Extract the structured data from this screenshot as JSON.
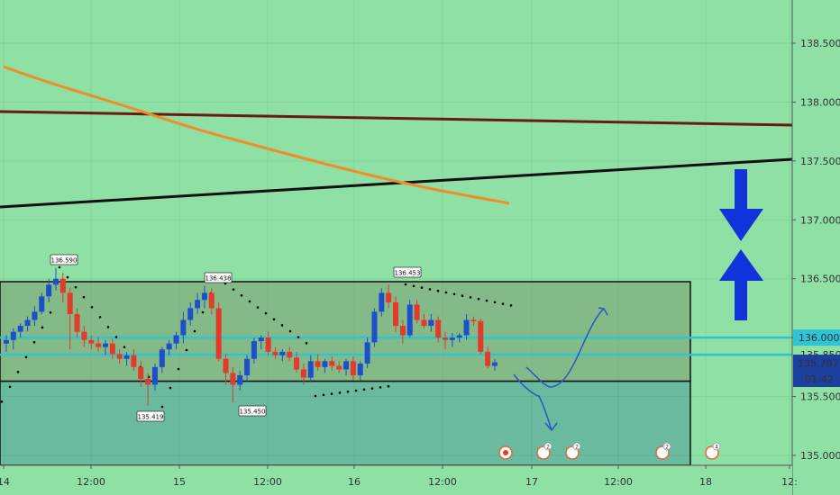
{
  "chart_data": {
    "type": "candlestick",
    "y_ticks": [
      138.5,
      138.0,
      137.5,
      137.0,
      136.5,
      136.0,
      135.5,
      135.0
    ],
    "y_tick_labels": [
      "138.500",
      "138.000",
      "137.500",
      "137.000",
      "136.500",
      "136.000",
      "135.500",
      "135.000"
    ],
    "x_tick_labels": [
      "14",
      "12:00",
      "15",
      "12:00",
      "16",
      "12:00",
      "17",
      "12:00",
      "18",
      "12:"
    ],
    "ylim": [
      134.96,
      138.84
    ],
    "price_tag": "135.787",
    "countdown_tag": "01:42",
    "price_label_136": "136.000",
    "hidden_label": "135.850",
    "annotations": [
      "136.590",
      "136.438",
      "135.419",
      "135.450",
      "136.453"
    ],
    "event_badges": [
      "2",
      "2",
      "2",
      "4"
    ],
    "colors": {
      "background": "#8fe0a4",
      "up": "#1e4fc8",
      "down": "#e23a2b",
      "box": "rgba(120,140,100,0.45)",
      "lower_box": "rgba(60,140,150,0.45)",
      "cyan": "#2ec4d6",
      "brown": "#6b1a12",
      "orange": "#f08c2a",
      "black": "#111111",
      "arrow": "#1034d9"
    },
    "candles": [
      [
        135.95,
        136.02,
        135.88,
        135.98
      ],
      [
        135.98,
        136.08,
        135.9,
        136.05
      ],
      [
        136.05,
        136.12,
        136.0,
        136.1
      ],
      [
        136.1,
        136.18,
        136.05,
        136.15
      ],
      [
        136.15,
        136.27,
        136.1,
        136.22
      ],
      [
        136.22,
        136.38,
        136.2,
        136.35
      ],
      [
        136.35,
        136.5,
        136.3,
        136.45
      ],
      [
        136.45,
        136.59,
        136.4,
        136.5
      ],
      [
        136.5,
        136.55,
        136.3,
        136.38
      ],
      [
        136.38,
        136.42,
        135.9,
        136.2
      ],
      [
        136.2,
        136.25,
        136.0,
        136.05
      ],
      [
        136.05,
        136.1,
        135.92,
        135.98
      ],
      [
        135.98,
        136.02,
        135.9,
        135.95
      ],
      [
        135.95,
        136.0,
        135.88,
        135.92
      ],
      [
        135.92,
        135.98,
        135.85,
        135.95
      ],
      [
        135.95,
        135.99,
        135.82,
        135.86
      ],
      [
        135.86,
        135.9,
        135.78,
        135.82
      ],
      [
        135.82,
        135.88,
        135.76,
        135.85
      ],
      [
        135.85,
        135.9,
        135.72,
        135.75
      ],
      [
        135.75,
        135.8,
        135.58,
        135.65
      ],
      [
        135.65,
        135.7,
        135.42,
        135.6
      ],
      [
        135.6,
        135.78,
        135.55,
        135.75
      ],
      [
        135.75,
        135.92,
        135.7,
        135.9
      ],
      [
        135.9,
        135.98,
        135.85,
        135.95
      ],
      [
        135.95,
        136.05,
        135.9,
        136.02
      ],
      [
        136.02,
        136.22,
        135.95,
        136.15
      ],
      [
        136.15,
        136.3,
        136.1,
        136.25
      ],
      [
        136.25,
        136.38,
        136.2,
        136.32
      ],
      [
        136.32,
        136.44,
        136.25,
        136.38
      ],
      [
        136.38,
        136.42,
        136.2,
        136.25
      ],
      [
        136.25,
        136.3,
        135.8,
        135.82
      ],
      [
        135.82,
        135.86,
        135.6,
        135.7
      ],
      [
        135.7,
        135.75,
        135.45,
        135.6
      ],
      [
        135.6,
        135.72,
        135.55,
        135.68
      ],
      [
        135.68,
        135.85,
        135.62,
        135.82
      ],
      [
        135.82,
        136.0,
        135.78,
        135.97
      ],
      [
        135.97,
        136.02,
        135.9,
        136.0
      ],
      [
        136.0,
        136.05,
        135.85,
        135.88
      ],
      [
        135.88,
        135.92,
        135.82,
        135.85
      ],
      [
        135.85,
        135.9,
        135.8,
        135.88
      ],
      [
        135.88,
        135.92,
        135.8,
        135.83
      ],
      [
        135.83,
        135.88,
        135.7,
        135.73
      ],
      [
        135.73,
        135.78,
        135.6,
        135.66
      ],
      [
        135.66,
        135.85,
        135.62,
        135.8
      ],
      [
        135.8,
        135.86,
        135.72,
        135.75
      ],
      [
        135.75,
        135.82,
        135.7,
        135.8
      ],
      [
        135.8,
        135.84,
        135.72,
        135.76
      ],
      [
        135.76,
        135.8,
        135.7,
        135.73
      ],
      [
        135.73,
        135.82,
        135.68,
        135.8
      ],
      [
        135.8,
        135.84,
        135.64,
        135.68
      ],
      [
        135.68,
        135.8,
        135.64,
        135.78
      ],
      [
        135.78,
        136.0,
        135.74,
        135.96
      ],
      [
        135.96,
        136.25,
        135.92,
        136.22
      ],
      [
        136.22,
        136.42,
        136.18,
        136.38
      ],
      [
        136.38,
        136.45,
        136.25,
        136.3
      ],
      [
        136.3,
        136.35,
        136.05,
        136.1
      ],
      [
        136.1,
        136.15,
        135.95,
        136.02
      ],
      [
        136.02,
        136.32,
        136.0,
        136.28
      ],
      [
        136.28,
        136.32,
        136.12,
        136.15
      ],
      [
        136.15,
        136.2,
        136.08,
        136.1
      ],
      [
        136.1,
        136.2,
        136.05,
        136.15
      ],
      [
        136.15,
        136.18,
        135.96,
        136.0
      ],
      [
        136.0,
        136.05,
        135.9,
        135.98
      ],
      [
        135.98,
        136.04,
        135.92,
        136.0
      ],
      [
        136.0,
        136.04,
        135.96,
        136.02
      ],
      [
        136.02,
        136.2,
        135.98,
        136.15
      ],
      [
        136.15,
        136.18,
        136.1,
        136.14
      ],
      [
        136.14,
        136.16,
        135.86,
        135.88
      ],
      [
        135.88,
        135.92,
        135.74,
        135.76
      ],
      [
        135.76,
        135.82,
        135.72,
        135.79
      ]
    ]
  }
}
